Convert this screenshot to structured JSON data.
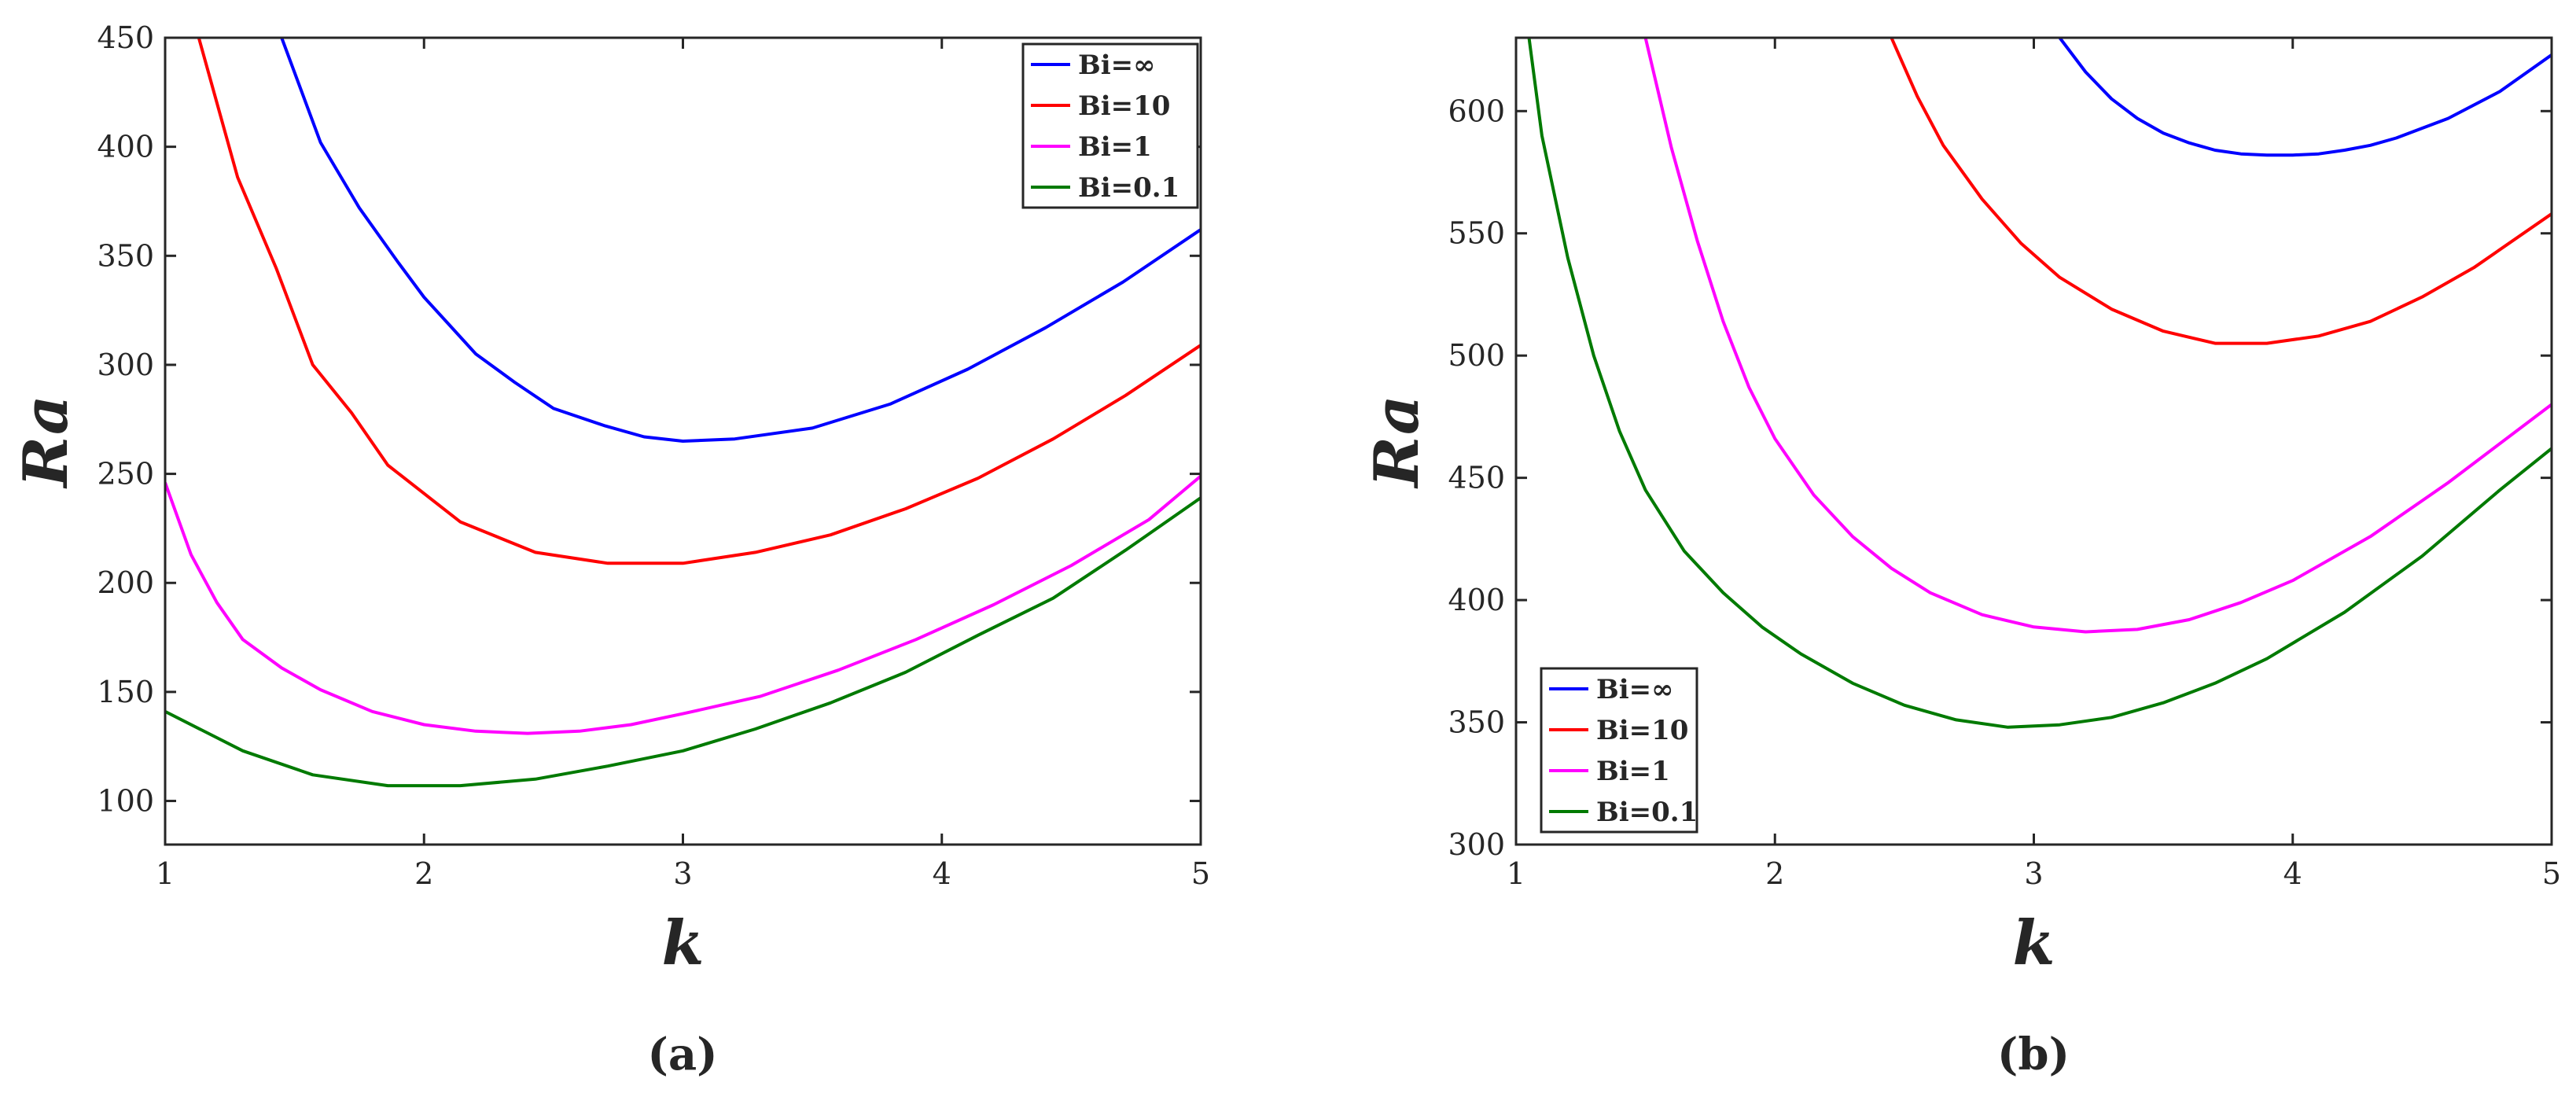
{
  "chart_data": [
    {
      "type": "line",
      "panel_label": "(a)",
      "xlabel": "k",
      "ylabel": "Ra",
      "xlim": [
        1,
        5
      ],
      "ylim": [
        80,
        450
      ],
      "xticks": [
        1,
        2,
        3,
        4,
        5
      ],
      "yticks": [
        100,
        150,
        200,
        250,
        300,
        350,
        400,
        450
      ],
      "grid": false,
      "legend_position": "top-right",
      "series": [
        {
          "name": "Bi=∞",
          "color": "#0000ff",
          "x": [
            1.45,
            1.6,
            1.75,
            1.9,
            2.0,
            2.1,
            2.2,
            2.35,
            2.5,
            2.7,
            2.85,
            3.0,
            3.2,
            3.5,
            3.8,
            4.1,
            4.4,
            4.7,
            5.0
          ],
          "y": [
            450,
            402,
            372,
            347,
            331,
            318,
            305,
            292,
            280,
            272,
            267,
            265,
            266,
            271,
            282,
            298,
            317,
            338,
            362
          ]
        },
        {
          "name": "Bi=10",
          "color": "#ff0000",
          "x": [
            1.13,
            1.28,
            1.43,
            1.57,
            1.72,
            1.86,
            2.0,
            2.14,
            2.43,
            2.71,
            3.0,
            3.28,
            3.57,
            3.86,
            4.14,
            4.43,
            4.71,
            5.0
          ],
          "y": [
            450,
            386,
            344,
            300,
            278,
            254,
            241,
            228,
            214,
            209,
            209,
            214,
            222,
            234,
            248,
            266,
            286,
            309
          ]
        },
        {
          "name": "Bi=1",
          "color": "#ff00ff",
          "x": [
            1.0,
            1.1,
            1.2,
            1.3,
            1.45,
            1.6,
            1.8,
            2.0,
            2.2,
            2.4,
            2.6,
            2.8,
            3.0,
            3.3,
            3.6,
            3.9,
            4.2,
            4.5,
            4.8,
            5.0
          ],
          "y": [
            246,
            213,
            191,
            174,
            161,
            151,
            141,
            135,
            132,
            131,
            132,
            135,
            140,
            148,
            160,
            174,
            190,
            208,
            229,
            249
          ]
        },
        {
          "name": "Bi=0.1",
          "color": "#007a00",
          "x": [
            1.0,
            1.3,
            1.57,
            1.86,
            2.14,
            2.43,
            2.71,
            3.0,
            3.28,
            3.57,
            3.86,
            4.14,
            4.43,
            4.71,
            5.0
          ],
          "y": [
            141,
            123,
            112,
            107,
            107,
            110,
            116,
            123,
            133,
            145,
            159,
            176,
            193,
            215,
            239
          ]
        }
      ]
    },
    {
      "type": "line",
      "panel_label": "(b)",
      "xlabel": "k",
      "ylabel": "Ra",
      "xlim": [
        1,
        5
      ],
      "ylim": [
        300,
        630
      ],
      "xticks": [
        1,
        2,
        3,
        4,
        5
      ],
      "yticks": [
        300,
        350,
        400,
        450,
        500,
        550,
        600
      ],
      "grid": false,
      "legend_position": "bottom-left",
      "series": [
        {
          "name": "Bi=∞",
          "color": "#0000ff",
          "x": [
            3.1,
            3.2,
            3.3,
            3.4,
            3.5,
            3.6,
            3.7,
            3.8,
            3.9,
            4.0,
            4.1,
            4.2,
            4.3,
            4.4,
            4.6,
            4.8,
            5.0
          ],
          "y": [
            630,
            616,
            605,
            597,
            591,
            587,
            584,
            582.5,
            582,
            582,
            582.5,
            584,
            586,
            589,
            597,
            608,
            623
          ]
        },
        {
          "name": "Bi=10",
          "color": "#ff0000",
          "x": [
            2.45,
            2.55,
            2.65,
            2.8,
            2.95,
            3.1,
            3.3,
            3.5,
            3.7,
            3.9,
            4.1,
            4.3,
            4.5,
            4.7,
            5.0
          ],
          "y": [
            630,
            606,
            586,
            564,
            546,
            532,
            519,
            510,
            505,
            505,
            508,
            514,
            524,
            536,
            558
          ]
        },
        {
          "name": "Bi=1",
          "color": "#ff00ff",
          "x": [
            1.5,
            1.6,
            1.7,
            1.8,
            1.9,
            2.0,
            2.15,
            2.3,
            2.45,
            2.6,
            2.8,
            3.0,
            3.2,
            3.4,
            3.6,
            3.8,
            4.0,
            4.3,
            4.6,
            5.0
          ],
          "y": [
            630,
            585,
            547,
            514,
            487,
            466,
            443,
            426,
            413,
            403,
            394,
            389,
            387,
            388,
            392,
            399,
            408,
            426,
            448,
            480
          ]
        },
        {
          "name": "Bi=0.1",
          "color": "#007a00",
          "x": [
            1.05,
            1.1,
            1.2,
            1.3,
            1.4,
            1.5,
            1.65,
            1.8,
            1.95,
            2.1,
            2.3,
            2.5,
            2.7,
            2.9,
            3.1,
            3.3,
            3.5,
            3.7,
            3.9,
            4.2,
            4.5,
            4.8,
            5.0
          ],
          "y": [
            630,
            590,
            540,
            500,
            469,
            445,
            420,
            403,
            389,
            378,
            366,
            357,
            351,
            348,
            349,
            352,
            358,
            366,
            376,
            395,
            418,
            445,
            462
          ]
        }
      ]
    }
  ]
}
